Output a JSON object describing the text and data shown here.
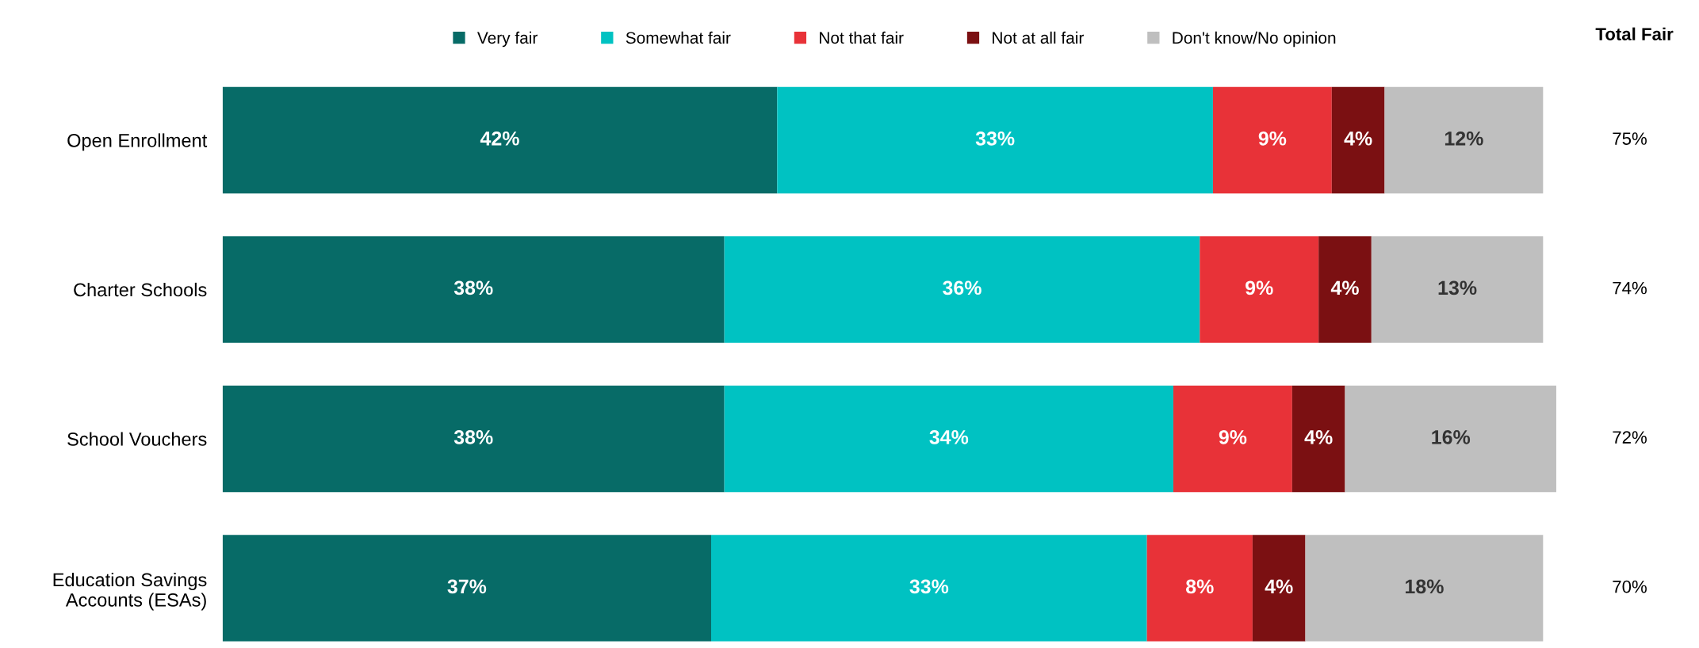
{
  "chart_data": {
    "type": "bar",
    "orientation": "horizontal",
    "stacked": true,
    "legend": "top",
    "grid": false,
    "tick_labels": "y",
    "categories": [
      "Open Enrollment",
      "Charter Schools",
      "School Vouchers",
      "Education Savings\nAccounts (ESAs)"
    ],
    "series": [
      {
        "name": "Very fair",
        "color": "#076b67",
        "values": [
          42,
          38,
          38,
          37
        ],
        "value_labels": [
          "42%",
          "38%",
          "38%",
          "37%"
        ]
      },
      {
        "name": "Somewhat fair",
        "color": "#00c2c2",
        "values": [
          33,
          36,
          34,
          33
        ],
        "value_labels": [
          "33%",
          "36%",
          "34%",
          "33%"
        ]
      },
      {
        "name": "Not that fair",
        "color": "#e83238",
        "values": [
          9,
          9,
          9,
          8
        ],
        "value_labels": [
          "9%",
          "9%",
          "9%",
          "8%"
        ]
      },
      {
        "name": "Not at all fair",
        "color": "#7b1012",
        "values": [
          4,
          4,
          4,
          4
        ],
        "value_labels": [
          "4%",
          "4%",
          "4%",
          "4%"
        ]
      },
      {
        "name": "Don't know/No opinion",
        "color": "#bfbfbf",
        "values": [
          12,
          13,
          16,
          18
        ],
        "value_labels": [
          "12%",
          "13%",
          "16%",
          "18%"
        ]
      }
    ],
    "annotations": [
      "Total Fair",
      "75%",
      "74%",
      "72%",
      "70%"
    ]
  }
}
